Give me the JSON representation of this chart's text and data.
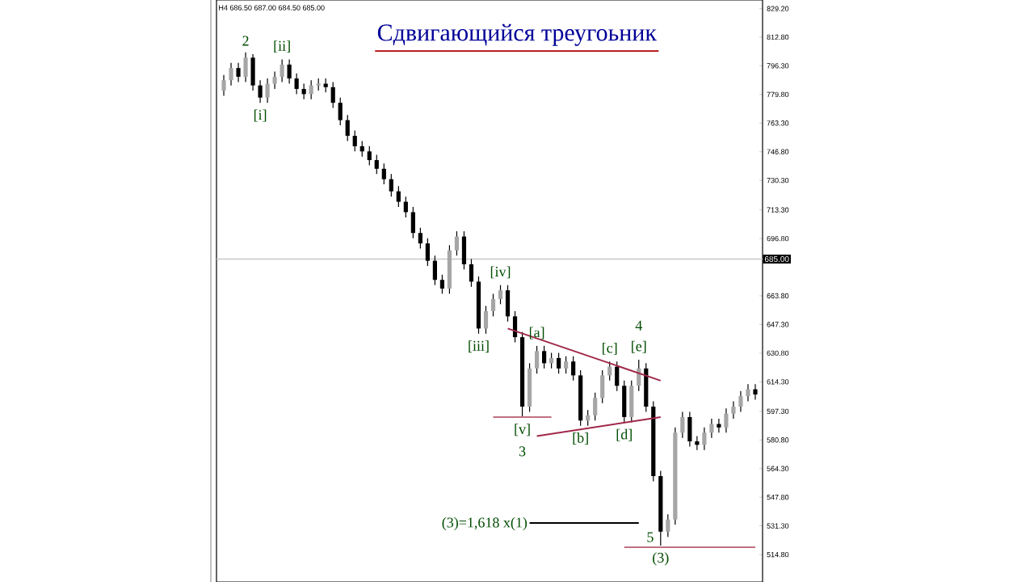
{
  "chart_data": {
    "type": "candlestick",
    "title": "Сдвигающийся треугоьник",
    "categories": [
      null,
      null,
      null,
      null,
      null,
      null,
      null,
      null,
      null,
      null,
      null,
      null,
      null,
      null,
      null,
      null,
      null,
      null,
      null,
      null,
      null,
      null,
      null,
      null,
      null,
      null,
      null,
      null,
      null,
      null,
      null,
      null,
      null,
      null,
      null,
      null,
      null,
      null,
      null,
      null,
      null,
      null,
      null,
      null,
      null,
      null,
      null,
      null,
      null,
      null,
      null,
      null,
      null,
      null,
      null,
      null,
      null,
      null,
      null,
      null,
      null,
      null,
      null,
      null,
      null,
      null,
      null,
      null,
      null,
      null,
      null,
      null,
      null,
      null
    ],
    "ohlc": [
      [
        782,
        791,
        779,
        788
      ],
      [
        788,
        798,
        785,
        795
      ],
      [
        795,
        798,
        787,
        790
      ],
      [
        790,
        804,
        787,
        801
      ],
      [
        801,
        803,
        782,
        785
      ],
      [
        785,
        788,
        775,
        778
      ],
      [
        778,
        789,
        775,
        786
      ],
      [
        786,
        793,
        783,
        790
      ],
      [
        790,
        800,
        787,
        797
      ],
      [
        797,
        800,
        786,
        789
      ],
      [
        789,
        792,
        780,
        783
      ],
      [
        783,
        786,
        777,
        780
      ],
      [
        780,
        788,
        777,
        785
      ],
      [
        785,
        789,
        782,
        786
      ],
      [
        786,
        789,
        781,
        784
      ],
      [
        784,
        787,
        772,
        775
      ],
      [
        775,
        778,
        762,
        765
      ],
      [
        765,
        768,
        753,
        756
      ],
      [
        756,
        759,
        747,
        750
      ],
      [
        750,
        753,
        744,
        747
      ],
      [
        747,
        750,
        739,
        742
      ],
      [
        742,
        745,
        734,
        737
      ],
      [
        737,
        740,
        728,
        731
      ],
      [
        731,
        734,
        721,
        724
      ],
      [
        724,
        727,
        715,
        718
      ],
      [
        718,
        721,
        709,
        712
      ],
      [
        712,
        715,
        697,
        700
      ],
      [
        700,
        703,
        691,
        694
      ],
      [
        694,
        697,
        681,
        684
      ],
      [
        684,
        687,
        670,
        673
      ],
      [
        673,
        676,
        665,
        668
      ],
      [
        668,
        693,
        665,
        690
      ],
      [
        690,
        701,
        687,
        698
      ],
      [
        698,
        701,
        679,
        682
      ],
      [
        682,
        685,
        669,
        672
      ],
      [
        672,
        675,
        642,
        645
      ],
      [
        645,
        658,
        642,
        655
      ],
      [
        655,
        665,
        652,
        662
      ],
      [
        662,
        670,
        659,
        667
      ],
      [
        667,
        670,
        649,
        652
      ],
      [
        652,
        655,
        637,
        640
      ],
      [
        640,
        643,
        594,
        600
      ],
      [
        600,
        625,
        597,
        622
      ],
      [
        622,
        635,
        619,
        632
      ],
      [
        632,
        635,
        622,
        625
      ],
      [
        625,
        631,
        622,
        628
      ],
      [
        628,
        631,
        619,
        622
      ],
      [
        622,
        629,
        619,
        626
      ],
      [
        626,
        629,
        615,
        618
      ],
      [
        618,
        621,
        589,
        592
      ],
      [
        592,
        598,
        589,
        595
      ],
      [
        595,
        608,
        592,
        605
      ],
      [
        605,
        621,
        602,
        618
      ],
      [
        618,
        626,
        615,
        623
      ],
      [
        623,
        626,
        609,
        612
      ],
      [
        612,
        615,
        591,
        594
      ],
      [
        594,
        615,
        591,
        612
      ],
      [
        612,
        627,
        609,
        622
      ],
      [
        622,
        625,
        597,
        600
      ],
      [
        600,
        603,
        557,
        560
      ],
      [
        560,
        563,
        520,
        528
      ],
      [
        528,
        538,
        525,
        535
      ],
      [
        535,
        588,
        532,
        585
      ],
      [
        585,
        597,
        582,
        594
      ],
      [
        594,
        597,
        577,
        580
      ],
      [
        580,
        583,
        575,
        578
      ],
      [
        578,
        588,
        575,
        585
      ],
      [
        585,
        593,
        582,
        590
      ],
      [
        590,
        593,
        585,
        588
      ],
      [
        588,
        599,
        585,
        596
      ],
      [
        596,
        603,
        593,
        600
      ],
      [
        600,
        609,
        597,
        606
      ],
      [
        606,
        613,
        603,
        610
      ],
      [
        610,
        613,
        604,
        607
      ]
    ],
    "series": [
      {
        "type": "line",
        "color": "#a0284a",
        "values": [
          null,
          null,
          null,
          null,
          null,
          null,
          null,
          null,
          null,
          null,
          null,
          null,
          null,
          null,
          null,
          null,
          null,
          null,
          null,
          null,
          null,
          null,
          null,
          null,
          null,
          null,
          null,
          null,
          null,
          null,
          null,
          null,
          null,
          null,
          null,
          null,
          null,
          null,
          null,
          645,
          null,
          null,
          null,
          null,
          null,
          null,
          null,
          null,
          null,
          null,
          null,
          null,
          null,
          null,
          null,
          null,
          null,
          null,
          null,
          null,
          615,
          null,
          null,
          null,
          null,
          null,
          null,
          null,
          null,
          null,
          null,
          null,
          null,
          null
        ]
      },
      {
        "type": "line",
        "color": "#a0284a",
        "values": [
          null,
          null,
          null,
          null,
          null,
          null,
          null,
          null,
          null,
          null,
          null,
          null,
          null,
          null,
          null,
          null,
          null,
          null,
          null,
          null,
          null,
          null,
          null,
          null,
          null,
          null,
          null,
          null,
          null,
          null,
          null,
          null,
          null,
          null,
          null,
          null,
          null,
          null,
          null,
          null,
          null,
          null,
          null,
          583,
          null,
          null,
          null,
          null,
          null,
          null,
          null,
          null,
          null,
          null,
          null,
          null,
          null,
          null,
          null,
          null,
          594,
          null,
          null,
          null,
          null,
          null,
          null,
          null,
          null,
          null,
          null,
          null,
          null,
          null
        ]
      },
      {
        "type": "line",
        "color": "#c07080",
        "values": [
          null,
          null,
          null,
          null,
          null,
          null,
          null,
          null,
          null,
          null,
          null,
          null,
          null,
          null,
          null,
          null,
          null,
          null,
          null,
          null,
          null,
          null,
          null,
          null,
          null,
          null,
          null,
          null,
          null,
          null,
          null,
          null,
          null,
          null,
          null,
          null,
          null,
          594,
          null,
          null,
          null,
          null,
          null,
          null,
          null,
          594,
          null,
          null,
          null,
          null,
          null,
          null,
          null,
          null,
          null,
          null,
          null,
          null,
          null,
          null,
          null,
          null,
          null,
          null,
          null,
          null,
          null,
          null,
          null,
          null,
          null,
          null,
          null,
          null
        ]
      },
      {
        "type": "line",
        "color": "#c07080",
        "values": [
          null,
          null,
          null,
          null,
          null,
          null,
          null,
          null,
          null,
          null,
          null,
          null,
          null,
          null,
          null,
          null,
          null,
          null,
          null,
          null,
          null,
          null,
          null,
          null,
          null,
          null,
          null,
          null,
          null,
          null,
          null,
          null,
          null,
          null,
          null,
          null,
          null,
          null,
          null,
          null,
          null,
          null,
          null,
          null,
          null,
          null,
          null,
          null,
          null,
          null,
          null,
          null,
          null,
          null,
          null,
          519,
          null,
          null,
          null,
          null,
          null,
          null,
          null,
          null,
          null,
          null,
          null,
          null,
          null,
          null,
          null,
          null,
          null,
          519
        ]
      },
      {
        "type": "line",
        "color": "#000000",
        "values": [
          null,
          null,
          null,
          null,
          null,
          null,
          null,
          null,
          null,
          null,
          null,
          null,
          null,
          null,
          null,
          null,
          null,
          null,
          null,
          null,
          null,
          null,
          null,
          null,
          null,
          null,
          null,
          null,
          null,
          null,
          null,
          null,
          null,
          null,
          null,
          null,
          null,
          null,
          null,
          null,
          null,
          null,
          533,
          null,
          null,
          null,
          null,
          null,
          null,
          null,
          null,
          null,
          null,
          null,
          null,
          null,
          null,
          533,
          null,
          null,
          null,
          null,
          null,
          null,
          null,
          null,
          null,
          null,
          null,
          null,
          null,
          null,
          null,
          null
        ]
      }
    ],
    "ref_lines": [
      {
        "axis": "y",
        "value": 685,
        "label": "685.00",
        "color": "#c8c8c8"
      }
    ],
    "annotations": [
      "H4 686.50 687.00 684.50 685.00",
      {
        "text": "2",
        "y": 804
      },
      {
        "text": "[i]",
        "y": 775
      },
      {
        "text": "[ii]",
        "y": 800
      },
      {
        "text": "[iii]",
        "y": 642
      },
      {
        "text": "[iv]",
        "y": 670
      },
      {
        "text": "[v]",
        "y": 594
      },
      {
        "text": "3",
        "y": 594
      },
      {
        "text": "[a]",
        "y": 635
      },
      {
        "text": "[b]",
        "y": 589
      },
      {
        "text": "[c]",
        "y": 626
      },
      {
        "text": "[d]",
        "y": 591
      },
      {
        "text": "[e]",
        "y": 627
      },
      {
        "text": "4",
        "y": 627
      },
      {
        "text": "(3)",
        "y": 520
      },
      {
        "text": "5",
        "y": 520
      },
      "(3)=1,618 x(1)"
    ],
    "ylim": [
      499,
      834.2
    ],
    "yticks": [
      {
        "value": 514.8,
        "label": "514.80"
      },
      {
        "value": 531.3,
        "label": "531.30"
      },
      {
        "value": 547.8,
        "label": "547.80"
      },
      {
        "value": 564.3,
        "label": "564.30"
      },
      {
        "value": 580.8,
        "label": "580.80"
      },
      {
        "value": 597.3,
        "label": "597.30"
      },
      {
        "value": 614.3,
        "label": "614.30"
      },
      {
        "value": 630.8,
        "label": "630.80"
      },
      {
        "value": 647.3,
        "label": "647.30"
      },
      {
        "value": 663.8,
        "label": "663.80"
      },
      {
        "value": 696.8,
        "label": "696.80"
      },
      {
        "value": 713.3,
        "label": "713.30"
      },
      {
        "value": 730.3,
        "label": "730.30"
      },
      {
        "value": 746.8,
        "label": "746.80"
      },
      {
        "value": 763.3,
        "label": "763.30"
      },
      {
        "value": 779.8,
        "label": "779.80"
      },
      {
        "value": 796.3,
        "label": "796.30"
      },
      {
        "value": 812.8,
        "label": "812.80"
      },
      {
        "value": 829.2,
        "label": "829.20"
      }
    ],
    "tick_labels": "y",
    "grid": false
  }
}
